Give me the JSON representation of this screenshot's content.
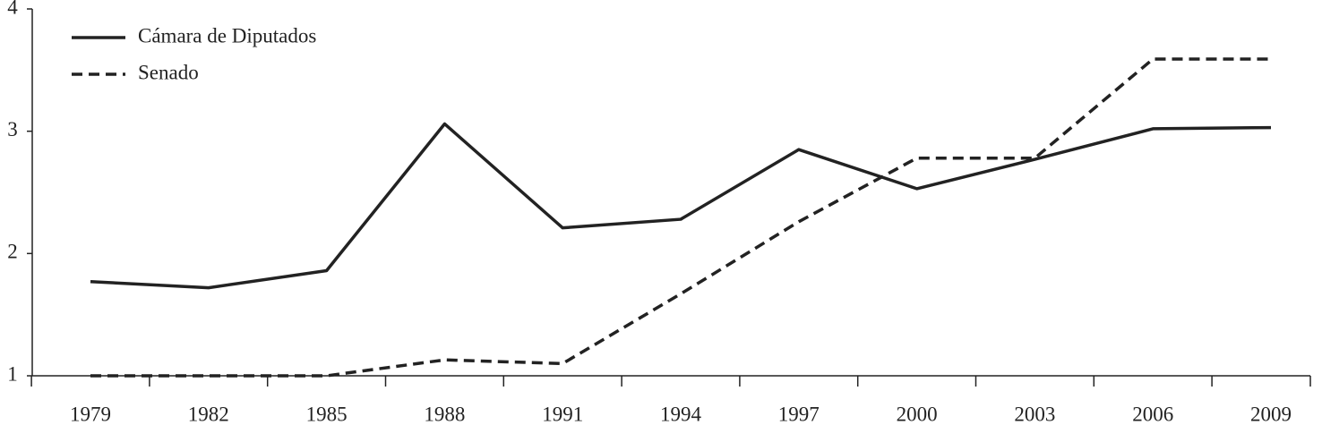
{
  "chart_data": {
    "type": "line",
    "categories": [
      "1979",
      "1982",
      "1985",
      "1988",
      "1991",
      "1994",
      "1997",
      "2000",
      "2003",
      "2006",
      "2009"
    ],
    "series": [
      {
        "name": "Cámara de Diputados",
        "color": "#222222",
        "dashed": false,
        "values": [
          1.77,
          1.72,
          1.86,
          3.06,
          2.21,
          2.28,
          2.85,
          2.53,
          2.77,
          3.02,
          3.03
        ]
      },
      {
        "name": "Senado",
        "color": "#222222",
        "dashed": true,
        "values": [
          1,
          1,
          1,
          1.13,
          1.1,
          1.67,
          2.26,
          2.78,
          2.78,
          3.59,
          3.59
        ]
      }
    ],
    "ylim": [
      1,
      4
    ],
    "yticks": [
      1,
      2,
      3,
      4
    ],
    "grid": false,
    "legend": "top-left"
  }
}
